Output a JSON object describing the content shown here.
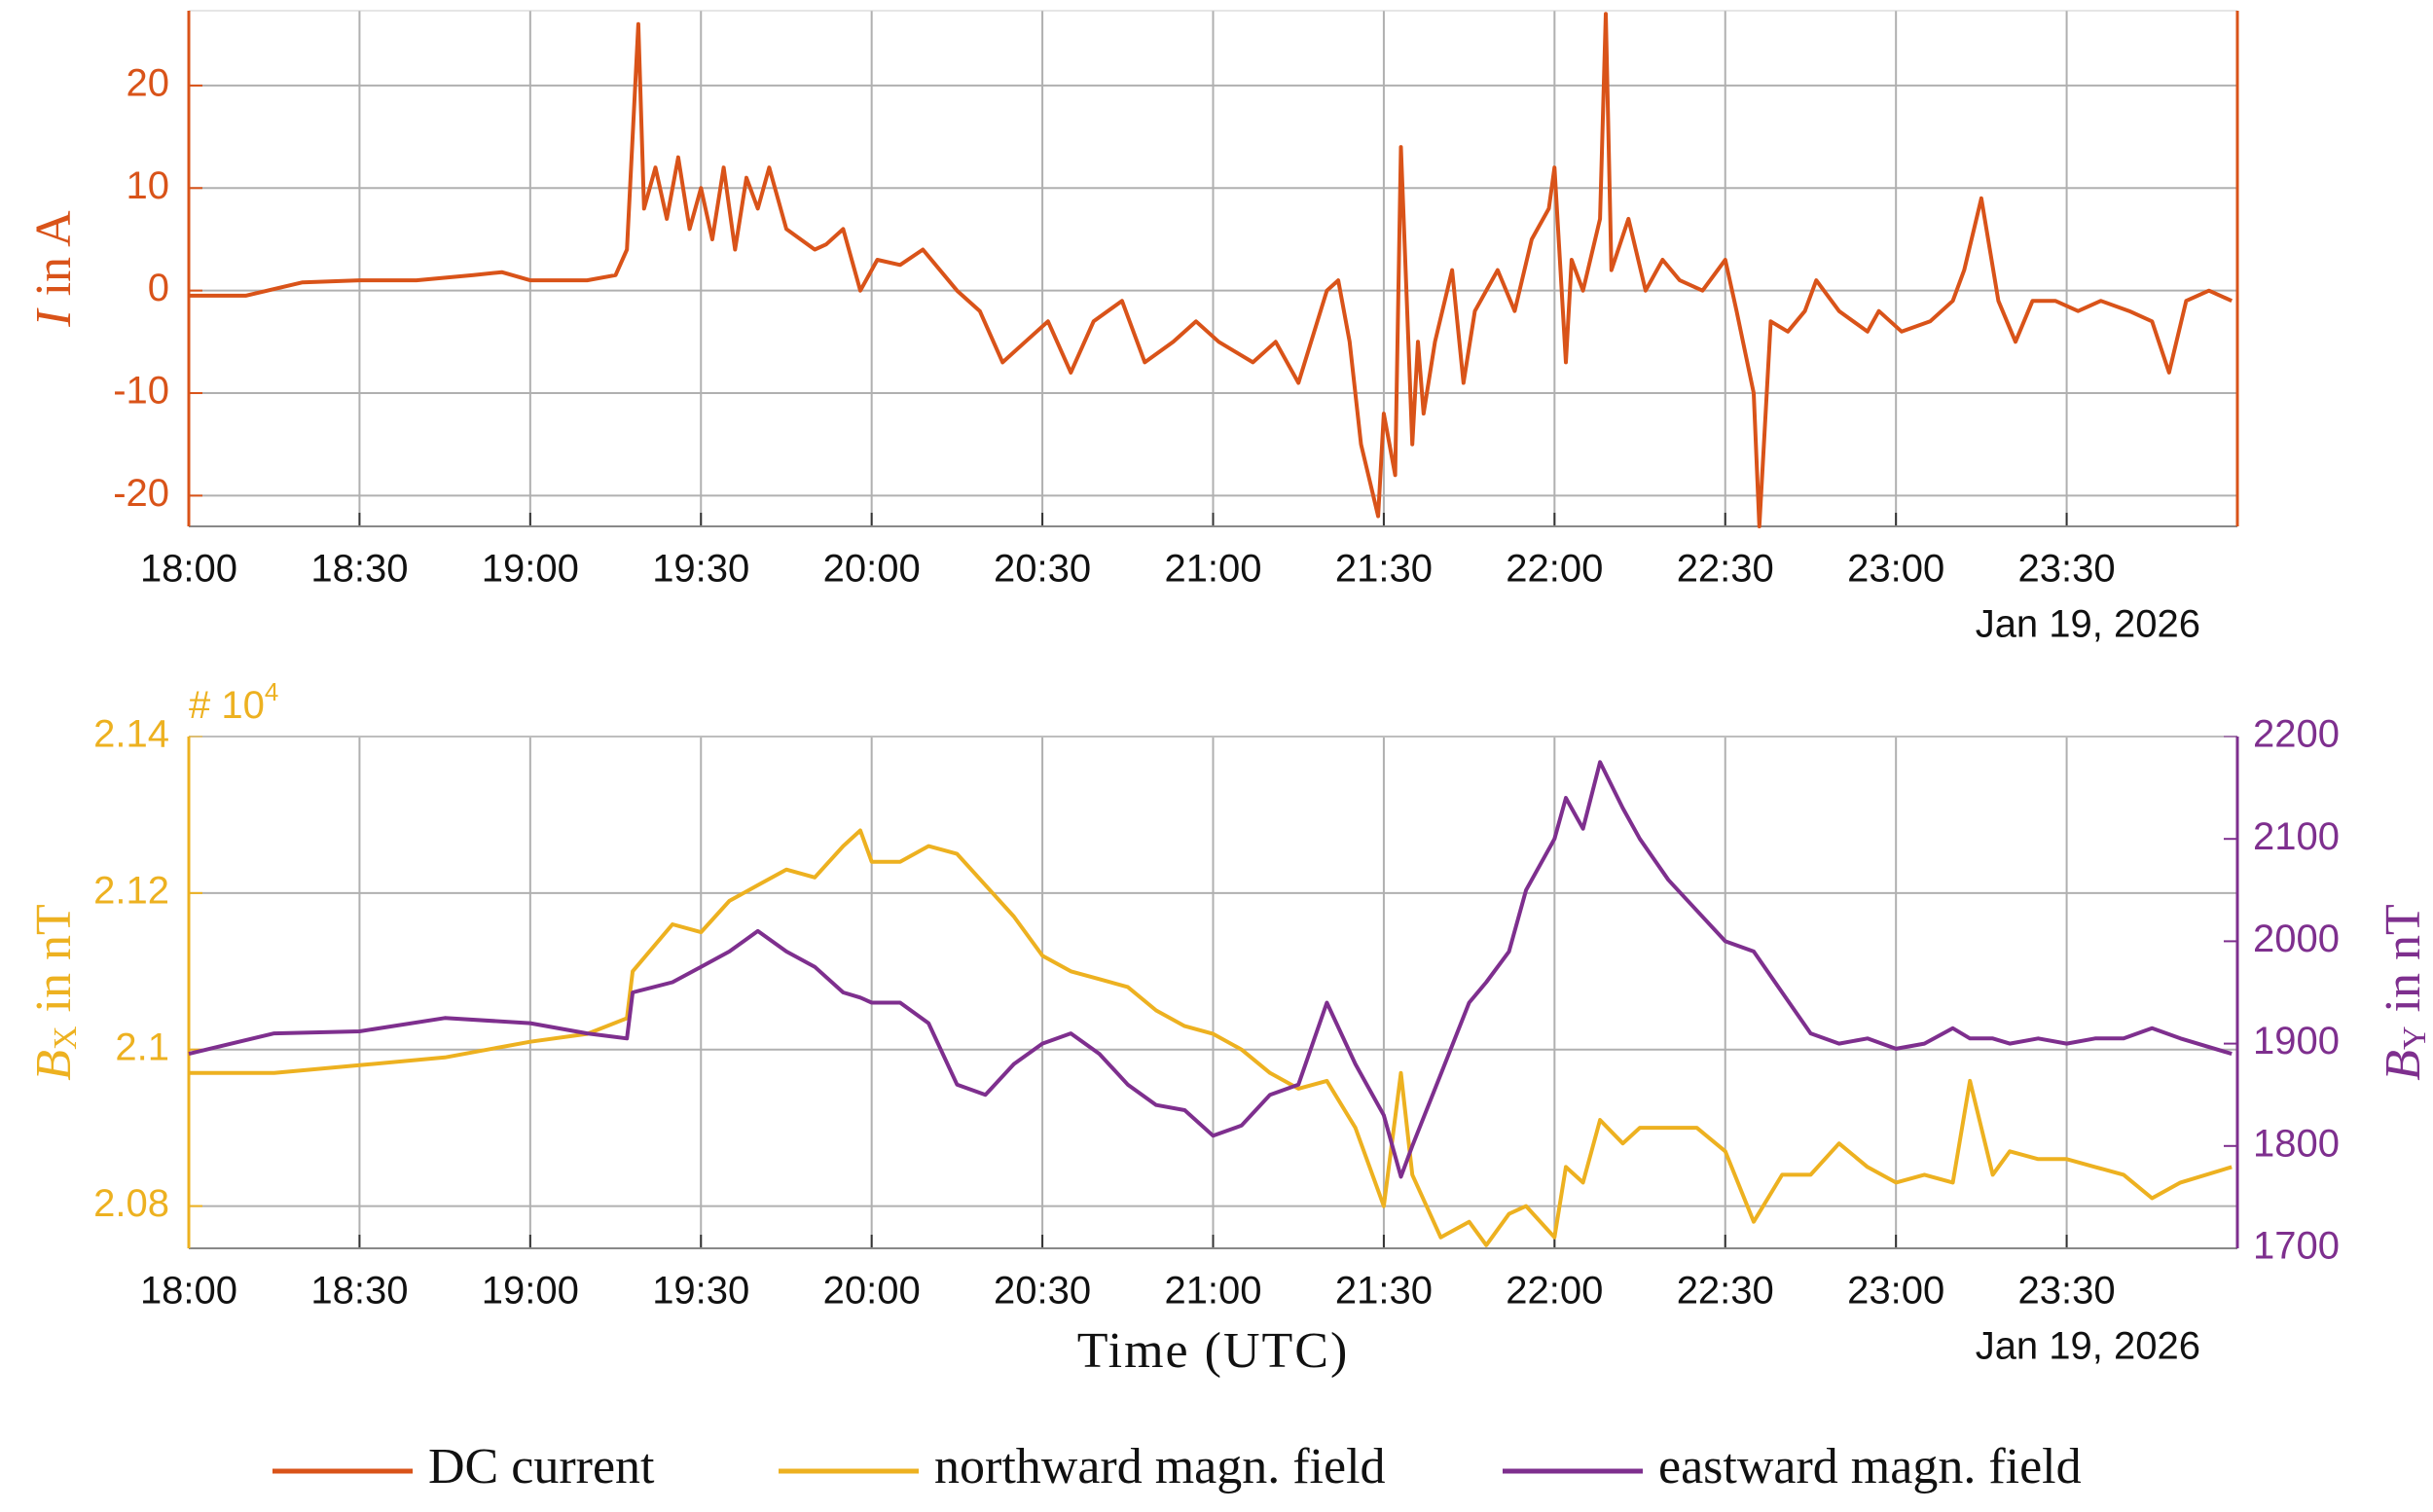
{
  "chart_data": [
    {
      "type": "line",
      "ylabel_symbol": "I",
      "ylabel_unit": "in A",
      "date_label": "Jan 19, 2026",
      "grid": true,
      "axis_color": "#d95319",
      "xlim": [
        "18:00",
        "24:00"
      ],
      "xticks": [
        "18:00",
        "18:30",
        "19:00",
        "19:30",
        "20:00",
        "20:30",
        "21:00",
        "21:30",
        "22:00",
        "22:30",
        "23:00",
        "23:30"
      ],
      "ylim": [
        -23,
        27.3
      ],
      "yticks": [
        -20,
        -10,
        0,
        10,
        20
      ],
      "x": [
        "18:00",
        "18:10",
        "18:20",
        "18:30",
        "18:40",
        "18:50",
        "18:55",
        "19:00",
        "19:10",
        "19:15",
        "19:17",
        "19:19",
        "19:20",
        "19:22",
        "19:24",
        "19:26",
        "19:28",
        "19:30",
        "19:32",
        "19:34",
        "19:36",
        "19:38",
        "19:40",
        "19:42",
        "19:45",
        "19:50",
        "19:52",
        "19:55",
        "19:58",
        "20:01",
        "20:05",
        "20:09",
        "20:15",
        "20:19",
        "20:23",
        "20:27",
        "20:31",
        "20:35",
        "20:39",
        "20:44",
        "20:48",
        "20:53",
        "20:57",
        "21:01",
        "21:07",
        "21:11",
        "21:15",
        "21:20",
        "21:22",
        "21:24",
        "21:26",
        "21:29",
        "21:30",
        "21:32",
        "21:33",
        "21:35",
        "21:36",
        "21:37",
        "21:39",
        "21:42",
        "21:44",
        "21:46",
        "21:50",
        "21:53",
        "21:56",
        "21:59",
        "22:00",
        "22:02",
        "22:03",
        "22:05",
        "22:08",
        "22:09",
        "22:10",
        "22:13",
        "22:16",
        "22:19",
        "22:22",
        "22:26",
        "22:30",
        "22:32",
        "22:35",
        "22:36",
        "22:38",
        "22:41",
        "22:44",
        "22:46",
        "22:50",
        "22:55",
        "22:57",
        "23:01",
        "23:06",
        "23:10",
        "23:12",
        "23:15",
        "23:18",
        "23:21",
        "23:24",
        "23:28",
        "23:32",
        "23:36",
        "23:41",
        "23:45",
        "23:48",
        "23:51",
        "23:55",
        "23:59"
      ],
      "series": [
        {
          "name": "DC current",
          "color": "#d95319",
          "values": [
            -0.5,
            -0.5,
            0.8,
            1,
            1,
            1.5,
            1.8,
            1,
            1,
            1.5,
            4,
            26,
            8,
            12,
            7,
            13,
            6,
            10,
            5,
            12,
            4,
            11,
            8,
            12,
            6,
            4,
            4.5,
            6,
            0,
            3,
            2.5,
            4,
            0,
            -2,
            -7,
            -5,
            -3,
            -8,
            -3,
            -1,
            -7,
            -5,
            -3,
            -5,
            -7,
            -5,
            -9,
            0,
            1,
            -5,
            -15,
            -22,
            -12,
            -18,
            14,
            -15,
            -5,
            -12,
            -5,
            2,
            -9,
            -2,
            2,
            -2,
            5,
            8,
            12,
            -7,
            3,
            0,
            7,
            27,
            2,
            7,
            0,
            3,
            1,
            0,
            3,
            -2,
            -10,
            -23,
            -3,
            -4,
            -2,
            1,
            -2,
            -4,
            -2,
            -4,
            -3,
            -1,
            2,
            9,
            -1,
            -5,
            -1,
            -1,
            -2,
            -1,
            -2,
            -3,
            -8,
            -1,
            0,
            -1
          ]
        }
      ]
    },
    {
      "type": "line",
      "xlabel": "Time (UTC)",
      "ylabel_symbol": "B",
      "ylabel_subscript": "X",
      "ylabel_unit": "in nT",
      "y2label_symbol": "B",
      "y2label_subscript": "Y",
      "y2label_unit": "in nT",
      "exponent_base": "# 10",
      "exponent": "4",
      "date_label": "Jan 19, 2026",
      "grid": true,
      "axis_color": "#edb120",
      "axis2_color": "#7e2f8e",
      "xlim": [
        "18:00",
        "24:00"
      ],
      "xticks": [
        "18:00",
        "18:30",
        "19:00",
        "19:30",
        "20:00",
        "20:30",
        "21:00",
        "21:30",
        "22:00",
        "22:30",
        "23:00",
        "23:30"
      ],
      "ylim": [
        2.0746,
        2.14
      ],
      "yticks": [
        2.08,
        2.1,
        2.12,
        2.14
      ],
      "y2lim": [
        1700,
        2200
      ],
      "y2ticks": [
        1700,
        1800,
        1900,
        2000,
        2100,
        2200
      ],
      "x": [
        "18:00",
        "18:15",
        "18:30",
        "18:45",
        "19:00",
        "19:10",
        "19:17",
        "19:18",
        "19:25",
        "19:30",
        "19:35",
        "19:40",
        "19:45",
        "19:50",
        "19:55",
        "19:58",
        "20:00",
        "20:05",
        "20:10",
        "20:15",
        "20:20",
        "20:25",
        "20:30",
        "20:35",
        "20:40",
        "20:45",
        "20:50",
        "20:55",
        "21:00",
        "21:05",
        "21:10",
        "21:15",
        "21:20",
        "21:25",
        "21:30",
        "21:33",
        "21:35",
        "21:40",
        "21:45",
        "21:48",
        "21:52",
        "21:55",
        "22:00",
        "22:02",
        "22:05",
        "22:08",
        "22:12",
        "22:15",
        "22:20",
        "22:25",
        "22:30",
        "22:35",
        "22:40",
        "22:45",
        "22:50",
        "22:55",
        "23:00",
        "23:05",
        "23:10",
        "23:13",
        "23:17",
        "23:20",
        "23:25",
        "23:30",
        "23:35",
        "23:40",
        "23:45",
        "23:50",
        "23:59"
      ],
      "series": [
        {
          "name": "northward magn. field",
          "color": "#edb120",
          "values": [
            2.097,
            2.097,
            2.098,
            2.099,
            2.101,
            2.102,
            2.104,
            2.11,
            2.116,
            2.115,
            2.119,
            2.121,
            2.123,
            2.122,
            2.126,
            2.128,
            2.124,
            2.124,
            2.126,
            2.125,
            2.121,
            2.117,
            2.112,
            2.11,
            2.109,
            2.108,
            2.105,
            2.103,
            2.102,
            2.1,
            2.097,
            2.095,
            2.096,
            2.09,
            2.08,
            2.097,
            2.084,
            2.076,
            2.078,
            2.075,
            2.079,
            2.08,
            2.076,
            2.085,
            2.083,
            2.091,
            2.088,
            2.09,
            2.09,
            2.09,
            2.087,
            2.078,
            2.084,
            2.084,
            2.088,
            2.085,
            2.083,
            2.084,
            2.083,
            2.096,
            2.084,
            2.087,
            2.086,
            2.086,
            2.085,
            2.084,
            2.081,
            2.083,
            2.085
          ]
        },
        {
          "name": "eastward magn. field",
          "color": "#7e2f8e",
          "axis": "y2",
          "values": [
            1890,
            1910,
            1912,
            1925,
            1920,
            1910,
            1905,
            1950,
            1960,
            1975,
            1990,
            2010,
            1990,
            1975,
            1950,
            1945,
            1940,
            1940,
            1920,
            1860,
            1850,
            1880,
            1900,
            1910,
            1890,
            1860,
            1840,
            1835,
            1810,
            1820,
            1850,
            1860,
            1940,
            1880,
            1830,
            1770,
            1800,
            1870,
            1940,
            1960,
            1990,
            2050,
            2100,
            2140,
            2110,
            2175,
            2130,
            2100,
            2060,
            2030,
            2000,
            1990,
            1950,
            1910,
            1900,
            1905,
            1895,
            1900,
            1915,
            1905,
            1905,
            1900,
            1905,
            1900,
            1905,
            1905,
            1915,
            1905,
            1890
          ]
        }
      ]
    }
  ]
}
